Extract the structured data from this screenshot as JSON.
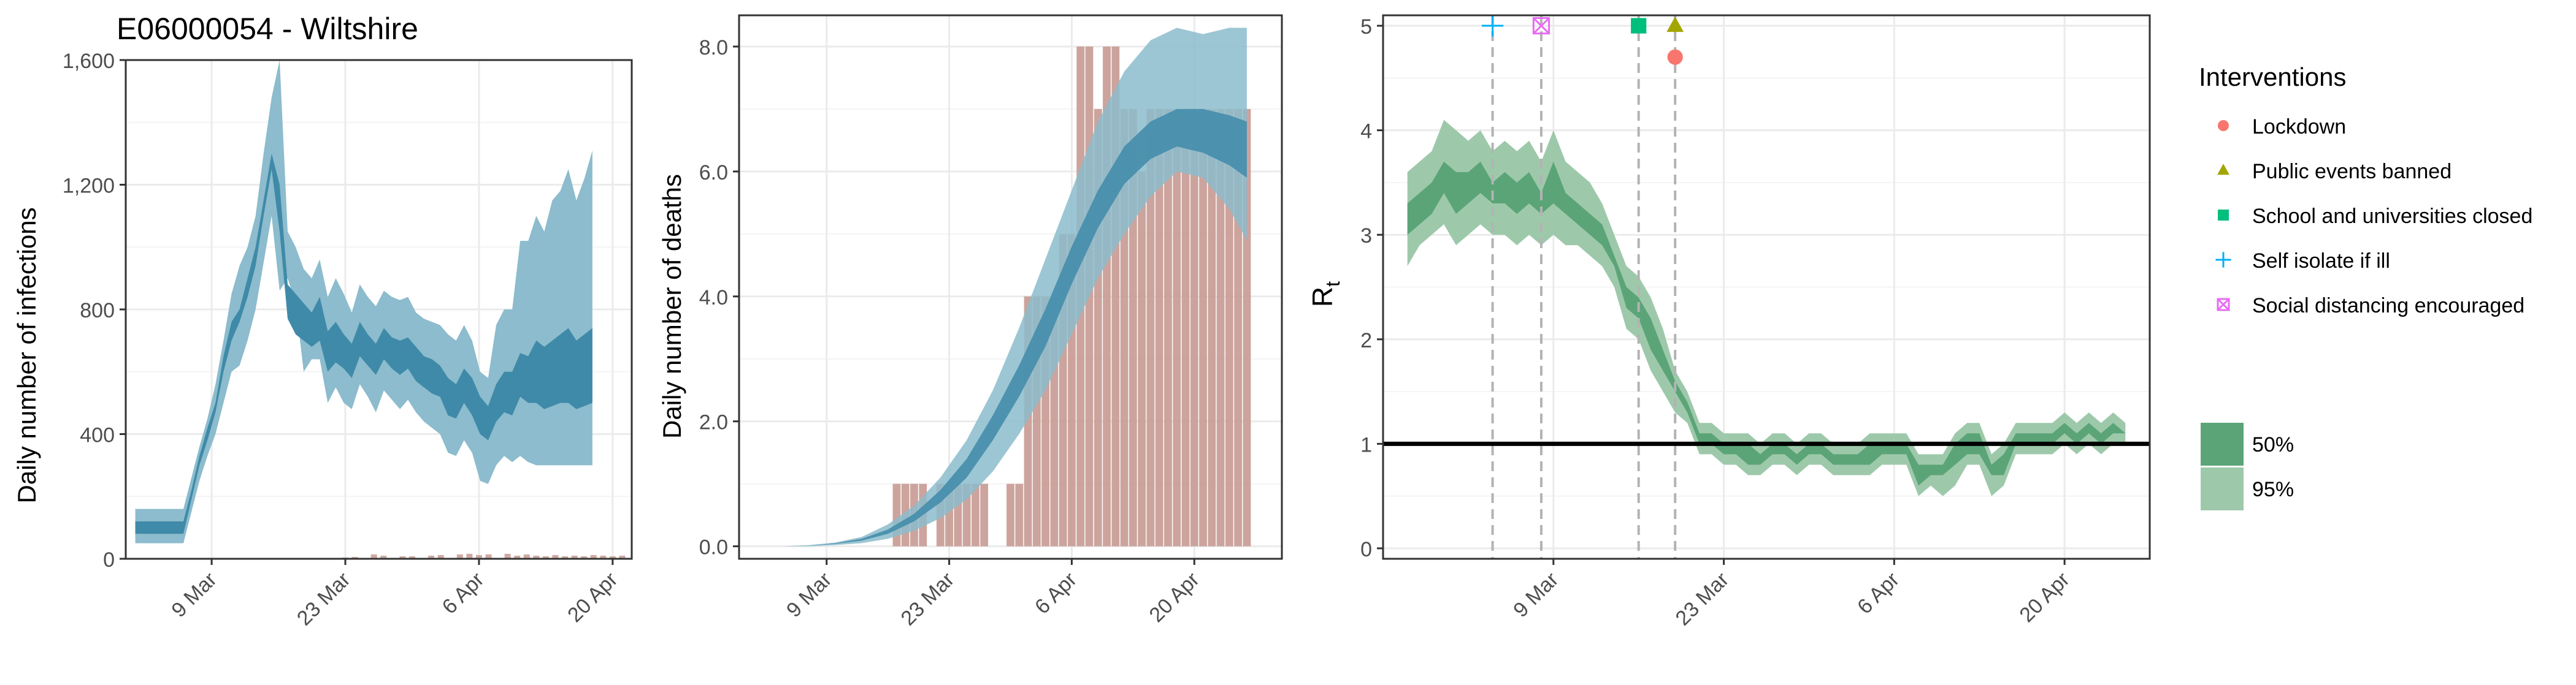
{
  "title": "E06000054 - Wiltshire",
  "colors": {
    "blue_95": "#8cbccd",
    "blue_50": "#3f8aa8",
    "bar": "#c79a92",
    "green_95": "#9dc9aa",
    "green_50": "#5ba478",
    "lockdown": "#f8766d",
    "events": "#a3a500",
    "school": "#00bf7d",
    "isolate": "#00b0f6",
    "distancing": "#e76bf3"
  },
  "chart_data": [
    {
      "type": "area",
      "name": "infections",
      "title": "E06000054 - Wiltshire",
      "xlabel": "",
      "ylabel": "Daily number of infections",
      "ylim": [
        0,
        1600
      ],
      "yticks": [
        0,
        400,
        800,
        1200,
        1600
      ],
      "ytick_labels": [
        "0",
        "400",
        "800",
        "1,200",
        "1,600"
      ],
      "xlim": [
        -2,
        51
      ],
      "xticks": [
        7,
        21,
        35,
        49
      ],
      "xtick_labels": [
        "9 Mar",
        "23 Mar",
        "6 Apr",
        "20 Apr"
      ],
      "x_dates": [
        "2020-02-29",
        "2020-03-01",
        "2020-03-02",
        "2020-03-03",
        "2020-03-04",
        "2020-03-05",
        "2020-03-06",
        "2020-03-07",
        "2020-03-08",
        "2020-03-09",
        "2020-03-10",
        "2020-03-11",
        "2020-03-12",
        "2020-03-13",
        "2020-03-14",
        "2020-03-15",
        "2020-03-16",
        "2020-03-17",
        "2020-03-18",
        "2020-03-19",
        "2020-03-20",
        "2020-03-21",
        "2020-03-22",
        "2020-03-23",
        "2020-03-24",
        "2020-03-25",
        "2020-03-26",
        "2020-03-27",
        "2020-03-28",
        "2020-03-29",
        "2020-03-30",
        "2020-03-31",
        "2020-04-01",
        "2020-04-02",
        "2020-04-03",
        "2020-04-04",
        "2020-04-05",
        "2020-04-06",
        "2020-04-07",
        "2020-04-08",
        "2020-04-09",
        "2020-04-10",
        "2020-04-11",
        "2020-04-12",
        "2020-04-13",
        "2020-04-14",
        "2020-04-15",
        "2020-04-16",
        "2020-04-17",
        "2020-04-18",
        "2020-04-19",
        "2020-04-20",
        "2020-04-21",
        "2020-04-22",
        "2020-04-23",
        "2020-04-24",
        "2020-04-25",
        "2020-04-26",
        "2020-04-27",
        "2020-04-28",
        "2020-04-29",
        "2020-04-30",
        "2020-05-01",
        "2020-05-02",
        "2020-05-03",
        "2020-05-04",
        "2020-05-05",
        "2020-05-06",
        "2020-05-07"
      ],
      "x_dates_note_removed": true,
      "lo95": [
        50,
        50,
        50,
        50,
        50,
        50,
        50,
        150,
        250,
        330,
        400,
        500,
        600,
        620,
        700,
        800,
        950,
        1100,
        860,
        900,
        820,
        600,
        640,
        640,
        500,
        550,
        500,
        480,
        560,
        520,
        470,
        540,
        510,
        480,
        510,
        470,
        440,
        420,
        400,
        340,
        330,
        380,
        340,
        250,
        240,
        300,
        330,
        310,
        330,
        310,
        300,
        300,
        300,
        300,
        300,
        300,
        300,
        300
      ],
      "hi95": [
        160,
        160,
        160,
        160,
        160,
        160,
        160,
        260,
        360,
        450,
        560,
        700,
        850,
        940,
        1000,
        1100,
        1300,
        1480,
        1600,
        1050,
        1000,
        930,
        900,
        960,
        840,
        900,
        850,
        790,
        880,
        840,
        810,
        860,
        840,
        830,
        840,
        790,
        770,
        760,
        750,
        720,
        700,
        750,
        700,
        600,
        580,
        750,
        800,
        800,
        1020,
        1020,
        1100,
        1050,
        1150,
        1180,
        1250,
        1150,
        1220,
        1310
      ],
      "lo50": [
        80,
        80,
        80,
        80,
        80,
        80,
        80,
        190,
        300,
        380,
        470,
        600,
        700,
        760,
        840,
        940,
        1100,
        1250,
        1050,
        770,
        720,
        700,
        680,
        700,
        600,
        630,
        610,
        580,
        650,
        620,
        590,
        640,
        610,
        590,
        610,
        570,
        550,
        530,
        520,
        460,
        450,
        500,
        460,
        400,
        380,
        440,
        470,
        460,
        520,
        500,
        500,
        480,
        490,
        500,
        500,
        480,
        490,
        500
      ],
      "hi50": [
        120,
        120,
        120,
        120,
        120,
        120,
        120,
        220,
        330,
        420,
        500,
        650,
        760,
        800,
        900,
        1000,
        1150,
        1300,
        1200,
        880,
        850,
        820,
        790,
        840,
        730,
        760,
        720,
        690,
        760,
        720,
        690,
        740,
        710,
        700,
        710,
        680,
        650,
        640,
        620,
        580,
        560,
        610,
        580,
        520,
        490,
        560,
        600,
        600,
        660,
        650,
        700,
        680,
        700,
        720,
        740,
        700,
        720,
        740
      ],
      "x_start": -2,
      "bars_note": "small observed values near zero",
      "bar_x": [
        21,
        22,
        24,
        25,
        27,
        28,
        30,
        31,
        33,
        34,
        35,
        36,
        38,
        39,
        40,
        41,
        42,
        43,
        44,
        45,
        46,
        47,
        48,
        49,
        50
      ],
      "bar_values": [
        4,
        6,
        14,
        10,
        8,
        8,
        10,
        12,
        14,
        16,
        12,
        14,
        16,
        10,
        14,
        10,
        8,
        12,
        8,
        10,
        8,
        12,
        10,
        8,
        10
      ]
    },
    {
      "type": "area",
      "name": "deaths",
      "xlabel": "",
      "ylabel": "Daily number of deaths",
      "ylim": [
        -0.2,
        8.5
      ],
      "yticks": [
        0,
        2,
        4,
        6,
        8
      ],
      "ytick_labels": [
        "0.0",
        "2.0",
        "4.0",
        "6.0",
        "8.0"
      ],
      "xlim": [
        -2,
        51
      ],
      "xticks": [
        7,
        21,
        35,
        49
      ],
      "xtick_labels": [
        "9 Mar",
        "23 Mar",
        "6 Apr",
        "20 Apr"
      ],
      "bar_values": [
        [
          18,
          1
        ],
        [
          19,
          1
        ],
        [
          20,
          1
        ],
        [
          21,
          1
        ],
        [
          23,
          1
        ],
        [
          24,
          1
        ],
        [
          25,
          1
        ],
        [
          26,
          1
        ],
        [
          27,
          1
        ],
        [
          28,
          1
        ],
        [
          31,
          1
        ],
        [
          32,
          1
        ],
        [
          33,
          4
        ],
        [
          34,
          4
        ],
        [
          35,
          4
        ],
        [
          36,
          4
        ],
        [
          37,
          5
        ],
        [
          38,
          5
        ],
        [
          39,
          8
        ],
        [
          40,
          8
        ],
        [
          41,
          7
        ],
        [
          42,
          8
        ],
        [
          43,
          8
        ],
        [
          44,
          7
        ],
        [
          45,
          7
        ],
        [
          46,
          6
        ],
        [
          47,
          7
        ],
        [
          48,
          7
        ],
        [
          49,
          7
        ],
        [
          50,
          7
        ],
        [
          51,
          7
        ],
        [
          52,
          7
        ],
        [
          53,
          7
        ],
        [
          54,
          7
        ],
        [
          55,
          7
        ],
        [
          56,
          7
        ],
        [
          57,
          7
        ],
        [
          58,
          7
        ]
      ],
      "band_x": [
        5,
        8,
        11,
        14,
        17,
        20,
        23,
        26,
        29,
        32,
        35,
        38,
        41,
        44,
        47,
        50,
        53,
        56,
        58
      ],
      "lo95": [
        0,
        0,
        0.02,
        0.05,
        0.12,
        0.25,
        0.45,
        0.75,
        1.2,
        1.8,
        2.5,
        3.4,
        4.3,
        5.0,
        5.6,
        6.0,
        5.9,
        5.4,
        4.9
      ],
      "hi95": [
        0,
        0.02,
        0.06,
        0.15,
        0.35,
        0.65,
        1.1,
        1.7,
        2.5,
        3.5,
        4.6,
        5.7,
        6.8,
        7.6,
        8.1,
        8.3,
        8.2,
        8.3,
        8.3
      ],
      "lo50": [
        0,
        0.01,
        0.04,
        0.09,
        0.2,
        0.4,
        0.7,
        1.1,
        1.7,
        2.4,
        3.2,
        4.2,
        5.1,
        5.8,
        6.2,
        6.4,
        6.3,
        6.1,
        5.9
      ],
      "hi50": [
        0,
        0.01,
        0.05,
        0.12,
        0.27,
        0.52,
        0.9,
        1.4,
        2.1,
        2.9,
        3.8,
        4.8,
        5.7,
        6.4,
        6.8,
        7.0,
        7.0,
        6.9,
        6.8
      ]
    },
    {
      "type": "area",
      "name": "rt",
      "xlabel": "",
      "ylabel": "R",
      "ylabel_sub": "t",
      "ylim": [
        -0.1,
        5.1
      ],
      "yticks": [
        0,
        1,
        2,
        3,
        4,
        5
      ],
      "ytick_labels": [
        "0",
        "1",
        "2",
        "3",
        "4",
        "5"
      ],
      "xlim": [
        -2,
        61
      ],
      "xticks": [
        12,
        26,
        40,
        54
      ],
      "xtick_labels": [
        "9 Mar",
        "23 Mar",
        "6 Apr",
        "20 Apr"
      ],
      "band_x_start": 0,
      "lo95": [
        2.7,
        2.9,
        3.0,
        3.1,
        2.9,
        3.0,
        3.1,
        3.0,
        3.0,
        2.9,
        3.0,
        2.9,
        3.0,
        2.9,
        2.9,
        2.8,
        2.7,
        2.5,
        2.1,
        2.0,
        1.7,
        1.5,
        1.3,
        1.2,
        0.9,
        0.9,
        0.8,
        0.8,
        0.7,
        0.7,
        0.8,
        0.8,
        0.7,
        0.8,
        0.8,
        0.7,
        0.7,
        0.7,
        0.7,
        0.8,
        0.8,
        0.8,
        0.5,
        0.6,
        0.5,
        0.6,
        0.8,
        0.8,
        0.5,
        0.6,
        0.9,
        0.9,
        0.9,
        0.9,
        1.0,
        0.9,
        1.0,
        0.9,
        1.0,
        1.0
      ],
      "hi95": [
        3.6,
        3.7,
        3.8,
        4.1,
        4.0,
        3.9,
        4.0,
        3.8,
        3.9,
        3.8,
        3.9,
        3.7,
        4.0,
        3.7,
        3.6,
        3.5,
        3.3,
        3.0,
        2.7,
        2.6,
        2.4,
        2.1,
        1.7,
        1.5,
        1.2,
        1.2,
        1.1,
        1.1,
        1.1,
        1.0,
        1.1,
        1.1,
        1.0,
        1.1,
        1.1,
        1.0,
        1.0,
        1.0,
        1.1,
        1.1,
        1.1,
        1.1,
        0.9,
        0.9,
        0.9,
        1.1,
        1.2,
        1.2,
        0.9,
        1.0,
        1.2,
        1.2,
        1.2,
        1.2,
        1.3,
        1.2,
        1.3,
        1.2,
        1.3,
        1.2
      ],
      "lo50": [
        3.0,
        3.1,
        3.2,
        3.4,
        3.2,
        3.3,
        3.4,
        3.3,
        3.3,
        3.2,
        3.3,
        3.2,
        3.3,
        3.2,
        3.1,
        3.0,
        2.9,
        2.7,
        2.3,
        2.2,
        1.9,
        1.7,
        1.5,
        1.3,
        1.0,
        1.0,
        0.9,
        0.9,
        0.8,
        0.8,
        0.9,
        0.9,
        0.8,
        0.9,
        0.9,
        0.8,
        0.8,
        0.8,
        0.8,
        0.9,
        0.9,
        0.9,
        0.6,
        0.7,
        0.7,
        0.8,
        0.9,
        0.9,
        0.7,
        0.7,
        1.0,
        1.0,
        1.0,
        1.0,
        1.1,
        1.0,
        1.1,
        1.0,
        1.1,
        1.1
      ],
      "hi50": [
        3.3,
        3.4,
        3.5,
        3.7,
        3.6,
        3.6,
        3.7,
        3.5,
        3.6,
        3.5,
        3.6,
        3.4,
        3.7,
        3.4,
        3.3,
        3.2,
        3.1,
        2.8,
        2.5,
        2.4,
        2.2,
        1.9,
        1.6,
        1.4,
        1.1,
        1.1,
        1.0,
        1.0,
        1.0,
        0.9,
        1.0,
        1.0,
        0.9,
        1.0,
        1.0,
        0.9,
        0.9,
        0.9,
        1.0,
        1.0,
        1.0,
        1.0,
        0.8,
        0.8,
        0.8,
        1.0,
        1.1,
        1.1,
        0.8,
        0.9,
        1.1,
        1.1,
        1.1,
        1.1,
        1.2,
        1.1,
        1.2,
        1.1,
        1.2,
        1.1
      ],
      "hline": 1,
      "vlines": [
        7,
        11,
        19,
        22
      ],
      "markers": [
        {
          "label": "Self isolate if ill",
          "x": 7,
          "y": 5.0
        },
        {
          "label": "Social distancing encouraged",
          "x": 11,
          "y": 5.0
        },
        {
          "label": "School and universities closed",
          "x": 19,
          "y": 5.0
        },
        {
          "label": "Public events banned",
          "x": 22,
          "y": 5.0
        },
        {
          "label": "Lockdown",
          "x": 22,
          "y": 4.7
        }
      ]
    }
  ],
  "legend": {
    "title": "Interventions",
    "items": [
      {
        "label": "Lockdown",
        "symbol": "circle"
      },
      {
        "label": "Public events banned",
        "symbol": "triangle"
      },
      {
        "label": "School and universities closed",
        "symbol": "square"
      },
      {
        "label": "Self isolate if ill",
        "symbol": "plus"
      },
      {
        "label": "Social distancing encouraged",
        "symbol": "boxed-x"
      }
    ],
    "ci_items": [
      {
        "label": "50%"
      },
      {
        "label": "95%"
      }
    ]
  }
}
